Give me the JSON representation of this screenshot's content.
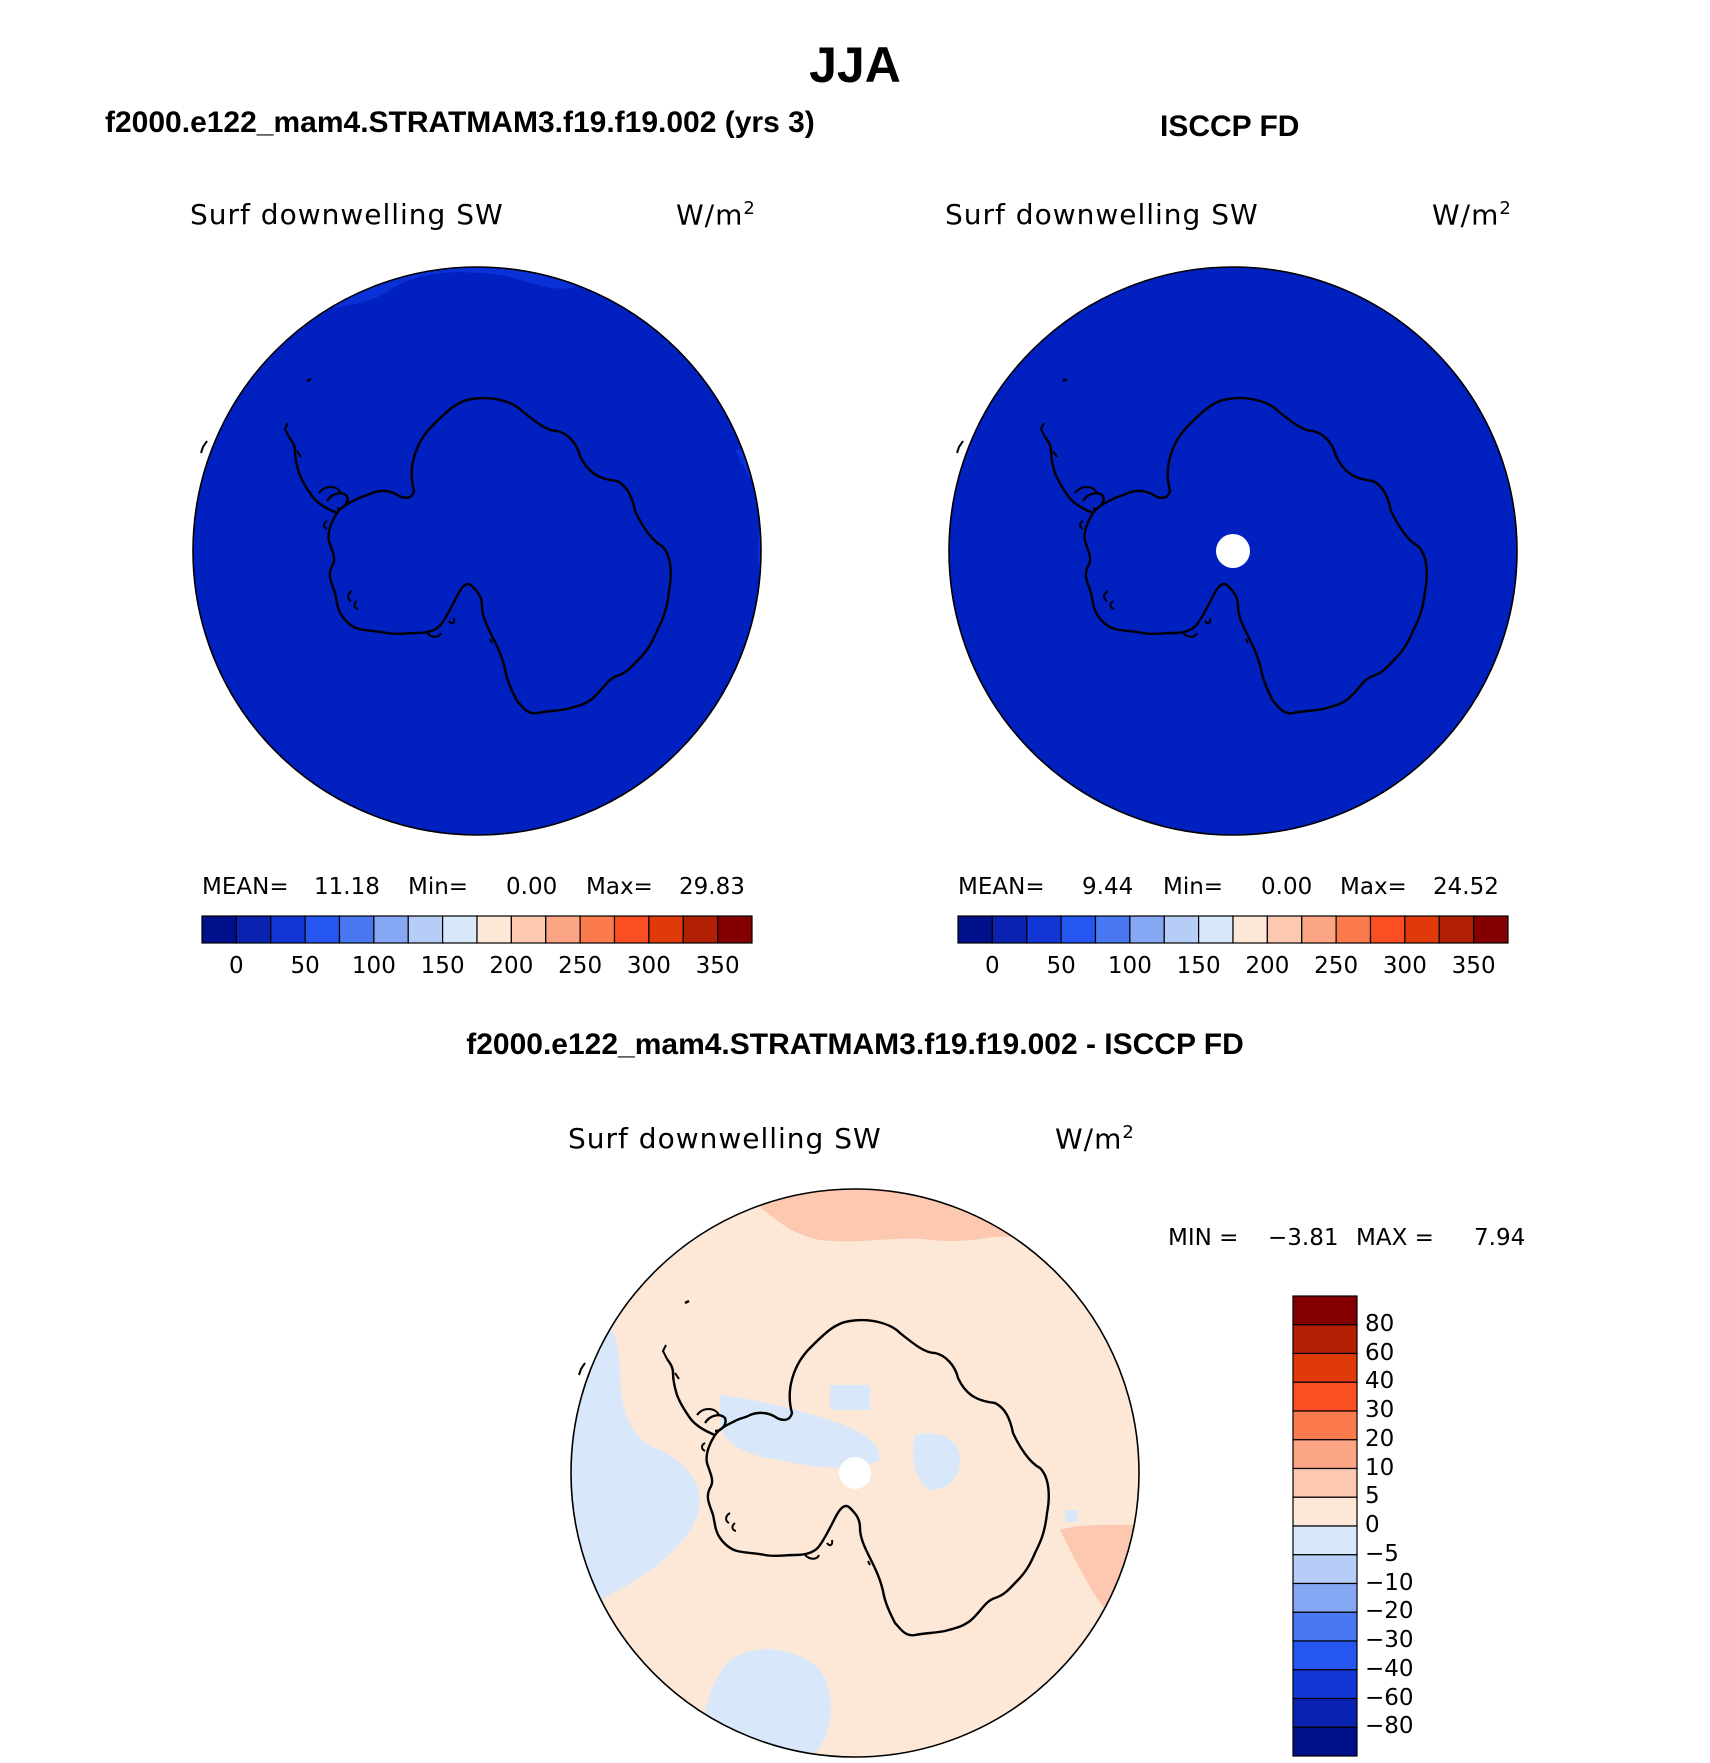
{
  "figure": {
    "title": "JJA",
    "case1_title": "f2000.e122_mam4.STRATMAM3.f19.f19.002 (yrs 3)",
    "case2_title": "ISCCP FD",
    "diff_title": "f2000.e122_mam4.STRATMAM3.f19.f19.002 - ISCCP FD"
  },
  "panels": [
    {
      "variable": "Surf downwelling SW",
      "unit_base": "W/m",
      "unit_exp": "2",
      "stats": {
        "mean_label": "MEAN=",
        "mean": "11.18",
        "min_label": "Min=",
        "min": "0.00",
        "max_label": "Max=",
        "max": "29.83"
      }
    },
    {
      "variable": "Surf downwelling SW",
      "unit_base": "W/m",
      "unit_exp": "2",
      "stats": {
        "mean_label": "MEAN=",
        "mean": "9.44",
        "min_label": "Min=",
        "min": "0.00",
        "max_label": "Max=",
        "max": "24.52"
      }
    },
    {
      "variable": "Surf downwelling SW",
      "unit_base": "W/m",
      "unit_exp": "2",
      "stats": {
        "min_label": "MIN =",
        "min": "−3.81",
        "max_label": "MAX =",
        "max": "7.94"
      }
    }
  ],
  "colorbar_horizontal": {
    "colors": [
      "#000f8a",
      "#0a22b0",
      "#1236d6",
      "#2656f0",
      "#4a78f2",
      "#86a8f4",
      "#b6cdf8",
      "#d8e8fa",
      "#fde8d8",
      "#fcc8b0",
      "#fba585",
      "#fb7a4e",
      "#fb4e22",
      "#e03a0a",
      "#b22004",
      "#840000"
    ],
    "tick_labels": [
      "0",
      "50",
      "100",
      "150",
      "200",
      "250",
      "300",
      "350"
    ]
  },
  "colorbar_vertical": {
    "colors": [
      "#840000",
      "#b22004",
      "#e03a0a",
      "#fb4e22",
      "#fb7a4e",
      "#fba585",
      "#fcc8b0",
      "#fde8d8",
      "#d8e8fa",
      "#b6cdf8",
      "#86a8f4",
      "#4a78f2",
      "#2656f0",
      "#1236d6",
      "#0a22b0",
      "#000f8a"
    ],
    "tick_labels": [
      "80",
      "60",
      "40",
      "30",
      "20",
      "10",
      "5",
      "0",
      "−5",
      "−10",
      "−20",
      "−30",
      "−40",
      "−60",
      "−80"
    ]
  },
  "map_colors": {
    "field_low": "#0020c0",
    "field_edge": "#0a30d8",
    "diff_pos": "#fde8d8",
    "diff_pos2": "#fcc8b0",
    "diff_neg": "#d8e8fa",
    "pole_hole": "#ffffff",
    "coast": "#000000"
  }
}
